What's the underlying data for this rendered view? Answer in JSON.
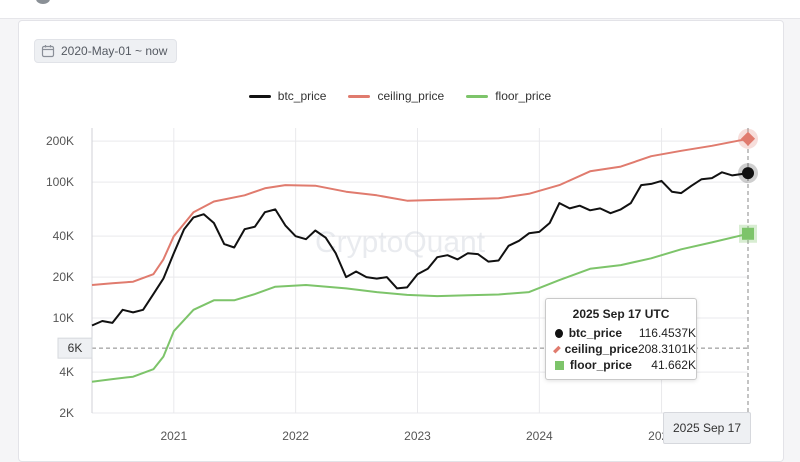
{
  "date_range": {
    "label": "2020-May-01 ~ now",
    "icon": "calendar-icon"
  },
  "watermark": "CryptoQuant",
  "colors": {
    "btc": "#111111",
    "ceiling": "#e07b6e",
    "floor": "#7dc46a",
    "grid": "#e9e9ec",
    "crosshair": "#888888"
  },
  "chart_data": {
    "type": "line",
    "y_scale": "log",
    "ylim": [
      2000,
      250000
    ],
    "xlim": [
      "2020-05-01",
      "2025-09-17"
    ],
    "grid": true,
    "legend_position": "top-center",
    "y_ticks": [
      {
        "value": 200000,
        "label": "200K"
      },
      {
        "value": 100000,
        "label": "100K"
      },
      {
        "value": 40000,
        "label": "40K"
      },
      {
        "value": 20000,
        "label": "20K"
      },
      {
        "value": 10000,
        "label": "10K"
      },
      {
        "value": 4000,
        "label": "4K"
      },
      {
        "value": 2000,
        "label": "2K"
      }
    ],
    "x_ticks": [
      {
        "value": "2021-01-01",
        "label": "2021"
      },
      {
        "value": "2022-01-01",
        "label": "2022"
      },
      {
        "value": "2023-01-01",
        "label": "2023"
      },
      {
        "value": "2024-01-01",
        "label": "2024"
      },
      {
        "value": "2025-01-01",
        "label": "2025"
      }
    ],
    "crosshair": {
      "y_value": 6000,
      "y_label": "6K",
      "x_value": "2025-09-17",
      "x_label": "2025 Sep 17"
    },
    "series": [
      {
        "name": "btc_price",
        "color": "#111111",
        "points": [
          [
            "2020-05-01",
            8800
          ],
          [
            "2020-06-01",
            9500
          ],
          [
            "2020-07-01",
            9200
          ],
          [
            "2020-08-01",
            11500
          ],
          [
            "2020-09-01",
            11000
          ],
          [
            "2020-10-01",
            11500
          ],
          [
            "2020-11-01",
            15000
          ],
          [
            "2020-12-01",
            19500
          ],
          [
            "2021-01-01",
            30000
          ],
          [
            "2021-02-01",
            45000
          ],
          [
            "2021-03-01",
            55000
          ],
          [
            "2021-04-01",
            58000
          ],
          [
            "2021-05-01",
            50000
          ],
          [
            "2021-06-01",
            35000
          ],
          [
            "2021-07-01",
            33000
          ],
          [
            "2021-08-01",
            45000
          ],
          [
            "2021-09-01",
            47000
          ],
          [
            "2021-10-01",
            60000
          ],
          [
            "2021-11-01",
            63000
          ],
          [
            "2021-12-01",
            48000
          ],
          [
            "2022-01-01",
            40000
          ],
          [
            "2022-02-01",
            38000
          ],
          [
            "2022-03-01",
            44000
          ],
          [
            "2022-04-01",
            39000
          ],
          [
            "2022-05-01",
            30000
          ],
          [
            "2022-06-01",
            20000
          ],
          [
            "2022-07-01",
            22000
          ],
          [
            "2022-08-01",
            20000
          ],
          [
            "2022-09-01",
            19500
          ],
          [
            "2022-10-01",
            20000
          ],
          [
            "2022-11-01",
            16500
          ],
          [
            "2022-12-01",
            16800
          ],
          [
            "2023-01-01",
            21000
          ],
          [
            "2023-02-01",
            23000
          ],
          [
            "2023-03-01",
            28000
          ],
          [
            "2023-04-01",
            29000
          ],
          [
            "2023-05-01",
            27000
          ],
          [
            "2023-06-01",
            30000
          ],
          [
            "2023-07-01",
            29500
          ],
          [
            "2023-08-01",
            26000
          ],
          [
            "2023-09-01",
            26500
          ],
          [
            "2023-10-01",
            34000
          ],
          [
            "2023-11-01",
            37000
          ],
          [
            "2023-12-01",
            42000
          ],
          [
            "2024-01-01",
            43000
          ],
          [
            "2024-02-01",
            50000
          ],
          [
            "2024-03-01",
            70000
          ],
          [
            "2024-04-01",
            64000
          ],
          [
            "2024-05-01",
            67000
          ],
          [
            "2024-06-01",
            62000
          ],
          [
            "2024-07-01",
            64000
          ],
          [
            "2024-08-01",
            59000
          ],
          [
            "2024-09-01",
            63000
          ],
          [
            "2024-10-01",
            70000
          ],
          [
            "2024-11-01",
            95000
          ],
          [
            "2024-12-01",
            97000
          ],
          [
            "2025-01-01",
            102000
          ],
          [
            "2025-02-01",
            85000
          ],
          [
            "2025-03-01",
            83000
          ],
          [
            "2025-04-01",
            94000
          ],
          [
            "2025-05-01",
            105000
          ],
          [
            "2025-06-01",
            107000
          ],
          [
            "2025-07-01",
            118000
          ],
          [
            "2025-08-01",
            112000
          ],
          [
            "2025-09-17",
            116453.7
          ]
        ]
      },
      {
        "name": "ceiling_price",
        "color": "#e07b6e",
        "points": [
          [
            "2020-05-01",
            17500
          ],
          [
            "2020-07-01",
            18000
          ],
          [
            "2020-09-01",
            18500
          ],
          [
            "2020-11-01",
            21000
          ],
          [
            "2020-12-01",
            27000
          ],
          [
            "2021-01-01",
            40000
          ],
          [
            "2021-03-01",
            60000
          ],
          [
            "2021-05-01",
            72000
          ],
          [
            "2021-08-01",
            80000
          ],
          [
            "2021-10-01",
            90000
          ],
          [
            "2021-12-01",
            95000
          ],
          [
            "2022-03-01",
            94000
          ],
          [
            "2022-06-01",
            85000
          ],
          [
            "2022-09-01",
            80000
          ],
          [
            "2022-12-01",
            73000
          ],
          [
            "2023-03-01",
            74000
          ],
          [
            "2023-06-01",
            75000
          ],
          [
            "2023-09-01",
            76000
          ],
          [
            "2023-12-01",
            82000
          ],
          [
            "2024-03-01",
            95000
          ],
          [
            "2024-06-01",
            120000
          ],
          [
            "2024-09-01",
            130000
          ],
          [
            "2024-12-01",
            155000
          ],
          [
            "2025-03-01",
            170000
          ],
          [
            "2025-06-01",
            185000
          ],
          [
            "2025-09-17",
            208310.1
          ]
        ]
      },
      {
        "name": "floor_price",
        "color": "#7dc46a",
        "points": [
          [
            "2020-05-01",
            3400
          ],
          [
            "2020-07-01",
            3550
          ],
          [
            "2020-09-01",
            3700
          ],
          [
            "2020-11-01",
            4200
          ],
          [
            "2020-12-01",
            5200
          ],
          [
            "2021-01-01",
            8000
          ],
          [
            "2021-03-01",
            11500
          ],
          [
            "2021-05-01",
            13500
          ],
          [
            "2021-07-01",
            13500
          ],
          [
            "2021-09-01",
            15000
          ],
          [
            "2021-11-01",
            17000
          ],
          [
            "2022-02-01",
            17500
          ],
          [
            "2022-06-01",
            16500
          ],
          [
            "2022-09-01",
            15500
          ],
          [
            "2022-12-01",
            14800
          ],
          [
            "2023-03-01",
            14500
          ],
          [
            "2023-06-01",
            14700
          ],
          [
            "2023-09-01",
            14900
          ],
          [
            "2023-12-01",
            15500
          ],
          [
            "2024-03-01",
            19000
          ],
          [
            "2024-06-01",
            23000
          ],
          [
            "2024-09-01",
            24500
          ],
          [
            "2024-12-01",
            27500
          ],
          [
            "2025-03-01",
            32000
          ],
          [
            "2025-06-01",
            36000
          ],
          [
            "2025-09-17",
            41662
          ]
        ]
      }
    ]
  },
  "tooltip": {
    "title": "2025 Sep 17 UTC",
    "rows": [
      {
        "name": "btc_price",
        "value": "116.4537K",
        "color": "#111111",
        "marker": "circle"
      },
      {
        "name": "ceiling_price",
        "value": "208.3101K",
        "color": "#e07b6e",
        "marker": "diamond"
      },
      {
        "name": "floor_price",
        "value": "41.662K",
        "color": "#7dc46a",
        "marker": "square"
      }
    ]
  }
}
